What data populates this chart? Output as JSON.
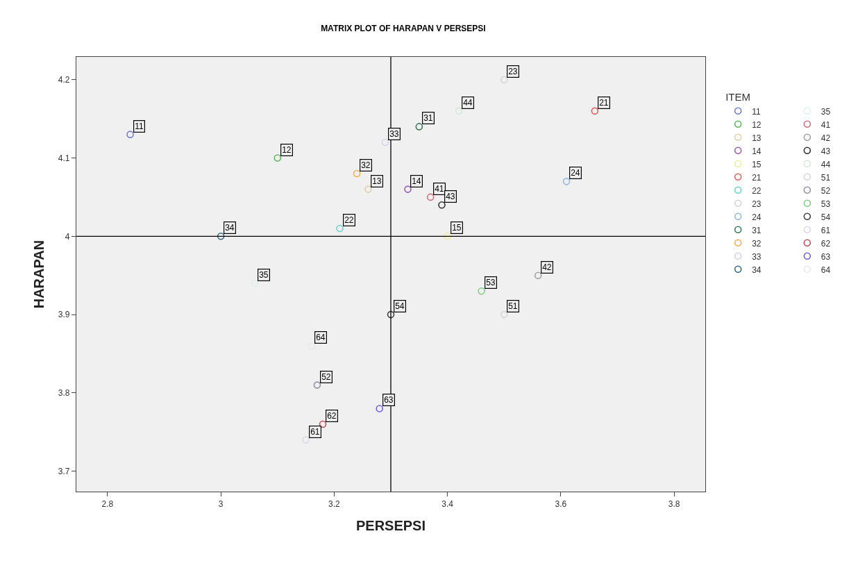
{
  "chart_data": {
    "type": "scatter",
    "title": "MATRIX PLOT OF HARAPAN V PERSEPSI",
    "xlabel": "PERSEPSI",
    "ylabel": "HARAPAN",
    "legend_title": "ITEM",
    "legend": "right",
    "marker": "circle",
    "grid": false,
    "xlim": [
      2.745,
      3.855
    ],
    "xticks": [
      2.8,
      3,
      3.2,
      3.4,
      3.6,
      3.8
    ],
    "ylim": [
      3.674,
      4.229
    ],
    "yticks": [
      3.7,
      3.8,
      3.9,
      4,
      4.1,
      4.2
    ],
    "ref_lines": [
      {
        "axis": "x",
        "value": 3.3,
        "color": "#000000"
      },
      {
        "axis": "y",
        "value": 4,
        "color": "#000000"
      }
    ],
    "series": [
      {
        "name": "11",
        "color": "#6f7fcf",
        "x": [
          2.84
        ],
        "values": [
          4.13
        ]
      },
      {
        "name": "12",
        "color": "#5cb85c",
        "x": [
          3.1
        ],
        "values": [
          4.1
        ]
      },
      {
        "name": "13",
        "color": "#e0d0a8",
        "x": [
          3.26
        ],
        "values": [
          4.06
        ]
      },
      {
        "name": "14",
        "color": "#9a5fb0",
        "x": [
          3.33
        ],
        "values": [
          4.06
        ]
      },
      {
        "name": "15",
        "color": "#eeeea0",
        "x": [
          3.4
        ],
        "values": [
          4.0
        ]
      },
      {
        "name": "21",
        "color": "#e06060",
        "x": [
          3.66
        ],
        "values": [
          4.16
        ]
      },
      {
        "name": "22",
        "color": "#70d0d0",
        "x": [
          3.21
        ],
        "values": [
          4.01
        ]
      },
      {
        "name": "23",
        "color": "#d4d4d4",
        "x": [
          3.5
        ],
        "values": [
          4.2
        ]
      },
      {
        "name": "24",
        "color": "#90b8e0",
        "x": [
          3.61
        ],
        "values": [
          4.07
        ]
      },
      {
        "name": "31",
        "color": "#3a7a5a",
        "x": [
          3.35
        ],
        "values": [
          4.14
        ]
      },
      {
        "name": "32",
        "color": "#f0b050",
        "x": [
          3.24
        ],
        "values": [
          4.08
        ]
      },
      {
        "name": "33",
        "color": "#d8d0e8",
        "x": [
          3.29
        ],
        "values": [
          4.12
        ]
      },
      {
        "name": "34",
        "color": "#3a6a80",
        "x": [
          3.0
        ],
        "values": [
          4.0
        ]
      },
      {
        "name": "35",
        "color": "#dcf2ec",
        "x": [
          3.06
        ],
        "values": [
          3.94
        ]
      },
      {
        "name": "41",
        "color": "#d07080",
        "x": [
          3.37
        ],
        "values": [
          4.05
        ]
      },
      {
        "name": "42",
        "color": "#a0a0a0",
        "x": [
          3.56
        ],
        "values": [
          3.95
        ]
      },
      {
        "name": "43",
        "color": "#303030",
        "x": [
          3.39
        ],
        "values": [
          4.04
        ]
      },
      {
        "name": "44",
        "color": "#d4e6dc",
        "x": [
          3.42
        ],
        "values": [
          4.16
        ]
      },
      {
        "name": "51",
        "color": "#d6d6d6",
        "x": [
          3.5
        ],
        "values": [
          3.9
        ]
      },
      {
        "name": "52",
        "color": "#9090a8",
        "x": [
          3.17
        ],
        "values": [
          3.81
        ]
      },
      {
        "name": "53",
        "color": "#80d080",
        "x": [
          3.46
        ],
        "values": [
          3.93
        ]
      },
      {
        "name": "54",
        "color": "#404040",
        "x": [
          3.3
        ],
        "values": [
          3.9
        ]
      },
      {
        "name": "61",
        "color": "#d8d8ea",
        "x": [
          3.15
        ],
        "values": [
          3.74
        ]
      },
      {
        "name": "62",
        "color": "#c05050",
        "x": [
          3.18
        ],
        "values": [
          3.76
        ]
      },
      {
        "name": "63",
        "color": "#7060e0",
        "x": [
          3.28
        ],
        "values": [
          3.78
        ]
      },
      {
        "name": "64",
        "color": "#e8e8e8",
        "x": [
          3.16
        ],
        "values": [
          3.86
        ]
      }
    ],
    "annotations": [
      {
        "text": "11",
        "x": 2.84,
        "y": 4.13
      },
      {
        "text": "12",
        "x": 3.1,
        "y": 4.1
      },
      {
        "text": "13",
        "x": 3.26,
        "y": 4.06
      },
      {
        "text": "14",
        "x": 3.33,
        "y": 4.06
      },
      {
        "text": "15",
        "x": 3.4,
        "y": 4.0
      },
      {
        "text": "21",
        "x": 3.66,
        "y": 4.16
      },
      {
        "text": "22",
        "x": 3.21,
        "y": 4.01
      },
      {
        "text": "23",
        "x": 3.5,
        "y": 4.2
      },
      {
        "text": "24",
        "x": 3.61,
        "y": 4.07
      },
      {
        "text": "31",
        "x": 3.35,
        "y": 4.14
      },
      {
        "text": "32",
        "x": 3.24,
        "y": 4.08
      },
      {
        "text": "33",
        "x": 3.29,
        "y": 4.12
      },
      {
        "text": "34",
        "x": 3.0,
        "y": 4.0
      },
      {
        "text": "35",
        "x": 3.06,
        "y": 3.94
      },
      {
        "text": "41",
        "x": 3.37,
        "y": 4.05
      },
      {
        "text": "42",
        "x": 3.56,
        "y": 3.95
      },
      {
        "text": "43",
        "x": 3.39,
        "y": 4.04
      },
      {
        "text": "44",
        "x": 3.42,
        "y": 4.16
      },
      {
        "text": "51",
        "x": 3.5,
        "y": 3.9
      },
      {
        "text": "52",
        "x": 3.17,
        "y": 3.81
      },
      {
        "text": "53",
        "x": 3.46,
        "y": 3.93
      },
      {
        "text": "54",
        "x": 3.3,
        "y": 3.9
      },
      {
        "text": "61",
        "x": 3.15,
        "y": 3.74
      },
      {
        "text": "62",
        "x": 3.18,
        "y": 3.76
      },
      {
        "text": "63",
        "x": 3.28,
        "y": 3.78
      },
      {
        "text": "64",
        "x": 3.16,
        "y": 3.86
      }
    ]
  }
}
